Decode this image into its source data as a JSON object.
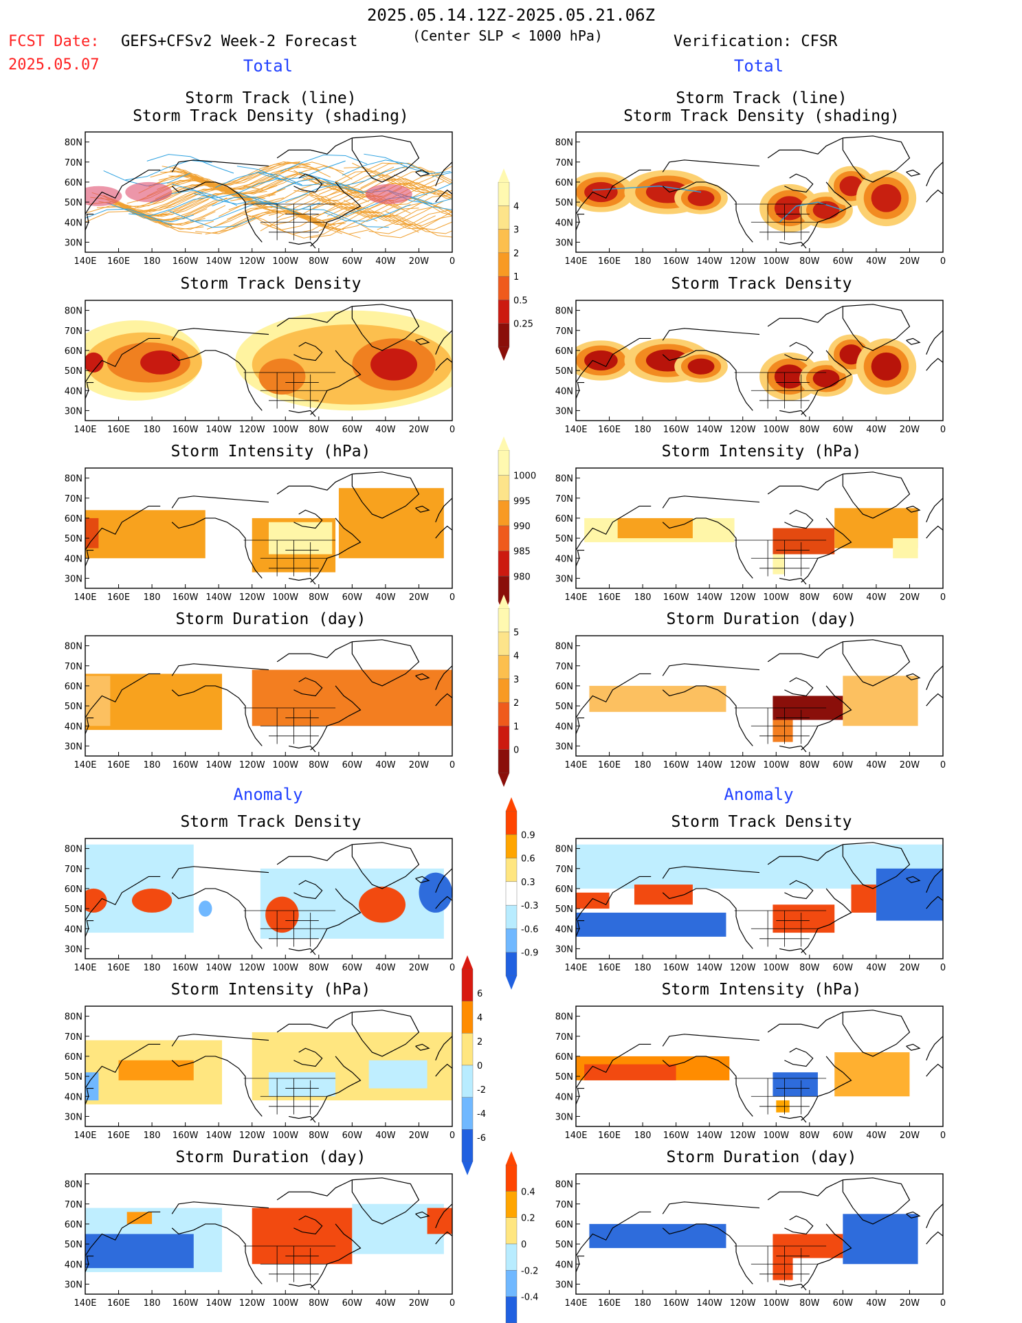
{
  "header": {
    "period": "2025.05.14.12Z-2025.05.21.06Z",
    "fcst_label": "FCST Date:",
    "fcst_date": "2025.05.07",
    "model": "GEFS+CFSv2 Week-2 Forecast",
    "criterion": "(Center SLP < 1000 hPa)",
    "verification": "Verification: CFSR"
  },
  "sections": {
    "total": "Total",
    "anomaly": "Anomaly"
  },
  "panel_titles": {
    "track_line": "Storm Track (line)",
    "track_shading": "Storm Track Density (shading)",
    "density": "Storm Track Density",
    "intensity": "Storm Intensity (hPa)",
    "duration": "Storm Duration (day)"
  },
  "axes": {
    "lon_labels": [
      "140E",
      "160E",
      "180",
      "160W",
      "140W",
      "120W",
      "100W",
      "80W",
      "60W",
      "40W",
      "20W",
      "0"
    ],
    "lat_labels": [
      "80N",
      "70N",
      "60N",
      "50N",
      "40N",
      "30N"
    ]
  },
  "colorbars": [
    {
      "id": "cb-density",
      "colors": [
        "#fff9b0",
        "#fde48a",
        "#fcbf4e",
        "#f89a23",
        "#ef5a1c",
        "#cc1a10",
        "#8a0f0a"
      ],
      "labels": [
        "4",
        "3",
        "2",
        "1",
        "0.5",
        "0.25"
      ],
      "direction": "up"
    },
    {
      "id": "cb-intensity",
      "colors": [
        "#fff9b0",
        "#fde48a",
        "#f89a23",
        "#ef5a1c",
        "#cc1a10",
        "#8a0f0a"
      ],
      "labels": [
        "1000",
        "995",
        "990",
        "985",
        "980"
      ],
      "direction": "down"
    },
    {
      "id": "cb-duration",
      "colors": [
        "#fff9b0",
        "#fde48a",
        "#fcbf4e",
        "#f89a23",
        "#ef5a1c",
        "#cc1a10",
        "#8a0f0a"
      ],
      "labels": [
        "5",
        "4",
        "3",
        "2",
        "1",
        "0"
      ],
      "direction": "up"
    },
    {
      "id": "cb-anom-density",
      "colors": [
        "#ff4500",
        "#ffa500",
        "#ffe680",
        "#ffffff",
        "#b8ecff",
        "#70b8ff",
        "#2060e0"
      ],
      "labels": [
        "0.9",
        "0.6",
        "0.3",
        "-0.3",
        "-0.6",
        "-0.9"
      ],
      "direction": "both"
    },
    {
      "id": "cb-anom-intensity",
      "colors": [
        "#d81a10",
        "#ff8c00",
        "#ffe680",
        "#b8ecff",
        "#70b8ff",
        "#2060e0"
      ],
      "labels": [
        "6",
        "4",
        "2",
        "0",
        "-2",
        "-4",
        "-6"
      ],
      "direction": "both"
    },
    {
      "id": "cb-anom-duration",
      "colors": [
        "#ff4500",
        "#ffa500",
        "#ffe680",
        "#b8ecff",
        "#70b8ff",
        "#2060e0"
      ],
      "labels": [
        "0.4",
        "0.2",
        "0",
        "-0.2",
        "-0.4"
      ],
      "direction": "both"
    }
  ],
  "colors": {
    "low": "#fff6a8",
    "mid": "#f8a21e",
    "high": "#e44a10",
    "max": "#b8140a",
    "anom_pos": "#f24a10",
    "anom_neg": "#2e6cdc",
    "anom_light_neg": "#bfeeff",
    "anom_light_pos": "#ffe680",
    "track_orange": "#f0a030",
    "track_blue": "#2aa0e0"
  }
}
